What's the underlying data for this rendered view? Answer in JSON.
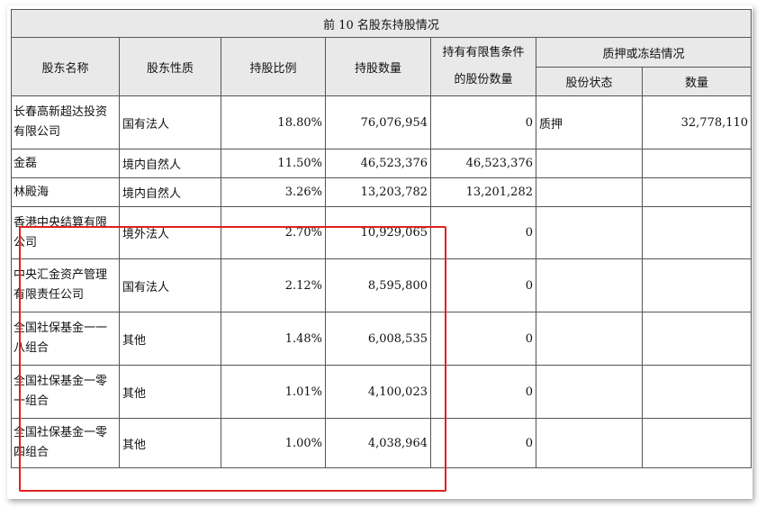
{
  "table": {
    "title": "前 10 名股东持股情况",
    "headers": {
      "name": "股东名称",
      "nature": "股东性质",
      "ratio": "持股比例",
      "quantity": "持股数量",
      "restricted_line1": "持有有限售条件",
      "restricted_line2": "的股份数量",
      "pledge": "质押或冻结情况",
      "pledge_status": "股份状态",
      "pledge_amount": "数量"
    },
    "rows": [
      {
        "name": "长春高新超达投资有限公司",
        "nature": "国有法人",
        "ratio": "18.80%",
        "quantity": "76,076,954",
        "restricted": "0",
        "status": "质押",
        "amount": "32,778,110"
      },
      {
        "name": "金磊",
        "nature": "境内自然人",
        "ratio": "11.50%",
        "quantity": "46,523,376",
        "restricted": "46,523,376",
        "status": "",
        "amount": ""
      },
      {
        "name": "林殿海",
        "nature": "境内自然人",
        "ratio": "3.26%",
        "quantity": "13,203,782",
        "restricted": "13,201,282",
        "status": "",
        "amount": ""
      },
      {
        "name": "香港中央结算有限公司",
        "nature": "境外法人",
        "ratio": "2.70%",
        "quantity": "10,929,065",
        "restricted": "0",
        "status": "",
        "amount": ""
      },
      {
        "name": "中央汇金资产管理有限责任公司",
        "nature": "国有法人",
        "ratio": "2.12%",
        "quantity": "8,595,800",
        "restricted": "0",
        "status": "",
        "amount": ""
      },
      {
        "name": "全国社保基金一一八组合",
        "nature": "其他",
        "ratio": "1.48%",
        "quantity": "6,008,535",
        "restricted": "0",
        "status": "",
        "amount": ""
      },
      {
        "name": "全国社保基金一零一组合",
        "nature": "其他",
        "ratio": "1.01%",
        "quantity": "4,100,023",
        "restricted": "0",
        "status": "",
        "amount": ""
      },
      {
        "name": "全国社保基金一零四组合",
        "nature": "其他",
        "ratio": "1.00%",
        "quantity": "4,038,964",
        "restricted": "0",
        "status": "",
        "amount": ""
      }
    ]
  },
  "colors": {
    "header_bg": "#e9e9e9",
    "highlight_border": "#e02020",
    "grid": "#555555"
  }
}
